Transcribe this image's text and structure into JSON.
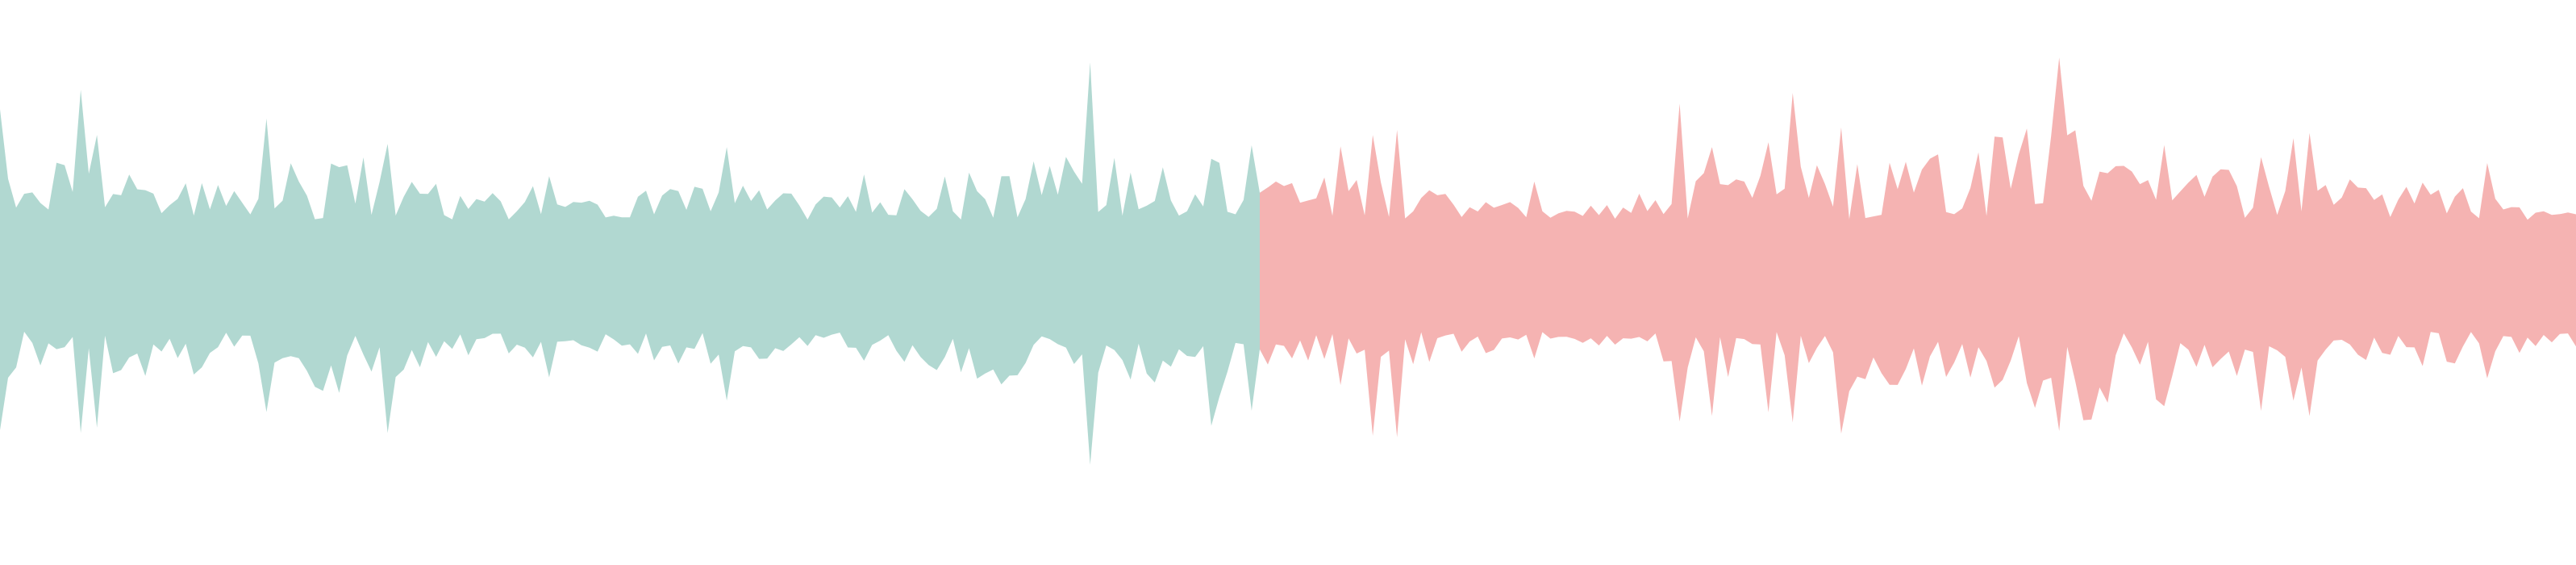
{
  "waveform": {
    "played_fraction": 0.49,
    "colors": {
      "played": "#b1d8d1",
      "unplayed": "#f5b3b2",
      "background": "#ffffff"
    }
  }
}
